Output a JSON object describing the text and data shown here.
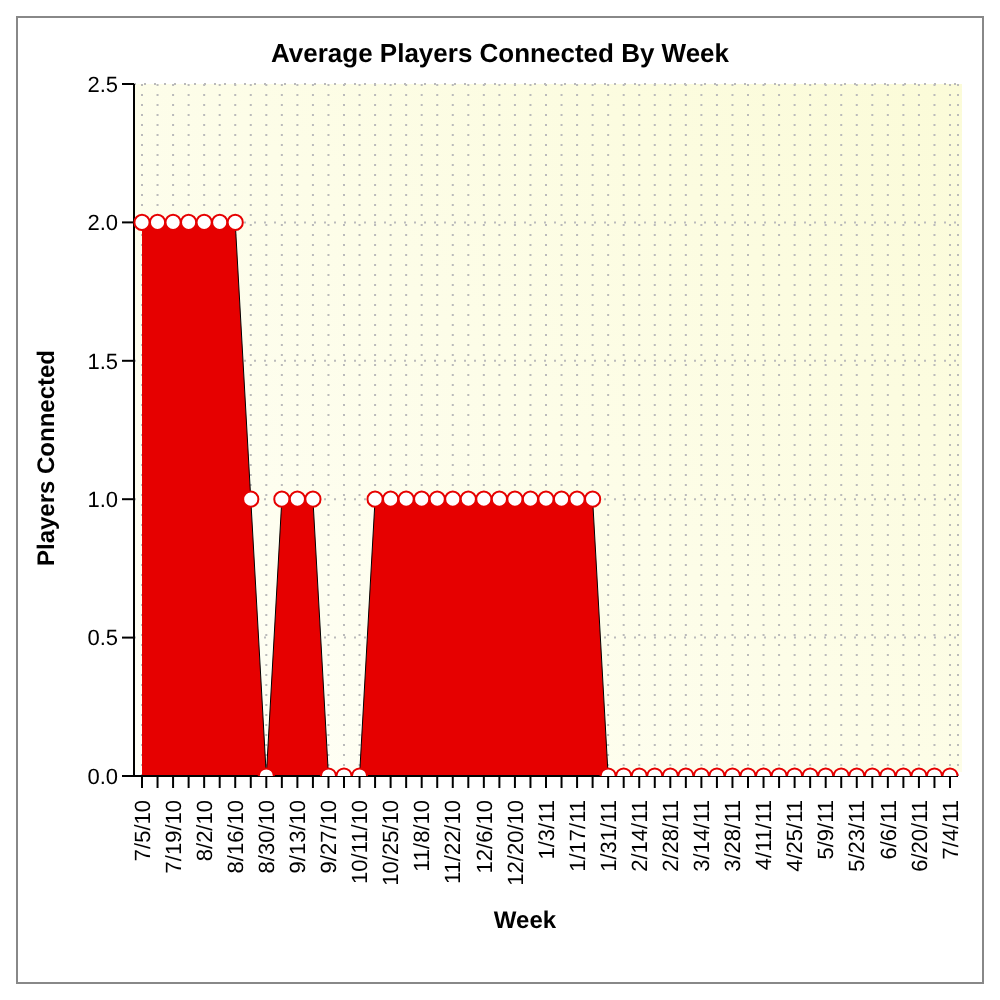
{
  "chart_data": {
    "type": "area",
    "title": "Average Players Connected By Week",
    "xlabel": "Week",
    "ylabel": "Players Connected",
    "categories": [
      "7/5/10",
      null,
      "7/19/10",
      null,
      "8/2/10",
      null,
      "8/16/10",
      null,
      "8/30/10",
      null,
      "9/13/10",
      null,
      "9/27/10",
      null,
      "10/11/10",
      null,
      "10/25/10",
      null,
      "11/8/10",
      null,
      "11/22/10",
      null,
      "12/6/10",
      null,
      "12/20/10",
      null,
      "1/3/11",
      null,
      "1/17/11",
      null,
      "1/31/11",
      null,
      "2/14/11",
      null,
      "2/28/11",
      null,
      "3/14/11",
      null,
      "3/28/11",
      null,
      "4/11/11",
      null,
      "4/25/11",
      null,
      "5/9/11",
      null,
      "5/23/11",
      null,
      "6/6/11",
      null,
      "6/20/11",
      null,
      "7/4/11"
    ],
    "series": [
      {
        "color": "#e60000",
        "values": [
          2,
          2,
          2,
          2,
          2,
          2,
          2,
          1,
          0,
          1,
          1,
          1,
          0,
          0,
          0,
          1,
          1,
          1,
          1,
          1,
          1,
          1,
          1,
          1,
          1,
          1,
          1,
          1,
          1,
          1,
          0,
          0,
          0,
          0,
          0,
          0,
          0,
          0,
          0,
          0,
          0,
          0,
          0,
          0,
          0,
          0,
          0,
          0,
          0,
          0,
          0,
          0,
          0
        ]
      }
    ],
    "ylim": [
      0,
      2.5
    ],
    "yticks": [
      {
        "value": 0,
        "label": "0.0"
      },
      {
        "value": 0.5,
        "label": "0.5"
      },
      {
        "value": 1,
        "label": "1.0"
      },
      {
        "value": 1.5,
        "label": "1.5"
      },
      {
        "value": 2,
        "label": "2.0"
      },
      {
        "value": 2.5,
        "label": "2.5"
      }
    ],
    "grid": true,
    "marker": "circle"
  }
}
